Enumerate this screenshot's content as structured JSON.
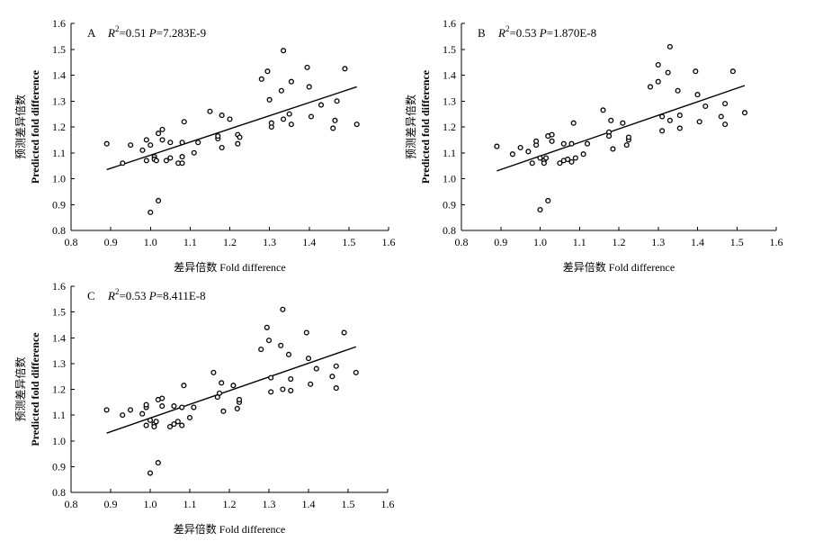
{
  "chart_data": [
    {
      "type": "scatter",
      "panel": "A",
      "stats": {
        "r2_label": "R",
        "r2_sup": "2",
        "r2_value": "=0.51",
        "p_label": "P",
        "p_value": "=7.283E-9"
      },
      "xlabel": "差异倍数 Fold difference",
      "ylabel_cn": "预测差异倍数",
      "ylabel_en": "Predicted fold difference",
      "xlim": [
        0.8,
        1.6
      ],
      "ylim": [
        0.8,
        1.6
      ],
      "xticks": [
        "0.8",
        "0.9",
        "1.0",
        "1.1",
        "1.2",
        "1.3",
        "1.4",
        "1.5",
        "1.6"
      ],
      "yticks": [
        "0.8",
        "0.9",
        "1.0",
        "1.1",
        "1.2",
        "1.3",
        "1.4",
        "1.5",
        "1.6"
      ],
      "fit_line": {
        "x": [
          0.89,
          1.52
        ],
        "y": [
          1.035,
          1.355
        ]
      },
      "points": [
        [
          0.89,
          1.135
        ],
        [
          0.93,
          1.06
        ],
        [
          0.95,
          1.13
        ],
        [
          0.98,
          1.11
        ],
        [
          0.99,
          1.07
        ],
        [
          0.99,
          1.15
        ],
        [
          1.0,
          1.13
        ],
        [
          1.0,
          0.87
        ],
        [
          1.01,
          1.085
        ],
        [
          1.01,
          1.075
        ],
        [
          1.015,
          1.07
        ],
        [
          1.02,
          0.915
        ],
        [
          1.02,
          1.175
        ],
        [
          1.03,
          1.19
        ],
        [
          1.03,
          1.15
        ],
        [
          1.04,
          1.07
        ],
        [
          1.05,
          1.08
        ],
        [
          1.05,
          1.14
        ],
        [
          1.07,
          1.06
        ],
        [
          1.08,
          1.06
        ],
        [
          1.08,
          1.085
        ],
        [
          1.08,
          1.14
        ],
        [
          1.085,
          1.22
        ],
        [
          1.11,
          1.1
        ],
        [
          1.12,
          1.14
        ],
        [
          1.15,
          1.26
        ],
        [
          1.17,
          1.155
        ],
        [
          1.17,
          1.165
        ],
        [
          1.18,
          1.245
        ],
        [
          1.18,
          1.12
        ],
        [
          1.2,
          1.23
        ],
        [
          1.22,
          1.135
        ],
        [
          1.22,
          1.17
        ],
        [
          1.225,
          1.16
        ],
        [
          1.28,
          1.385
        ],
        [
          1.295,
          1.415
        ],
        [
          1.3,
          1.305
        ],
        [
          1.305,
          1.2
        ],
        [
          1.305,
          1.215
        ],
        [
          1.33,
          1.34
        ],
        [
          1.335,
          1.495
        ],
        [
          1.335,
          1.23
        ],
        [
          1.35,
          1.25
        ],
        [
          1.355,
          1.375
        ],
        [
          1.355,
          1.21
        ],
        [
          1.395,
          1.43
        ],
        [
          1.4,
          1.355
        ],
        [
          1.405,
          1.24
        ],
        [
          1.43,
          1.285
        ],
        [
          1.46,
          1.195
        ],
        [
          1.465,
          1.225
        ],
        [
          1.47,
          1.3
        ],
        [
          1.49,
          1.425
        ],
        [
          1.52,
          1.21
        ]
      ]
    },
    {
      "type": "scatter",
      "panel": "B",
      "stats": {
        "r2_label": "R",
        "r2_sup": "2",
        "r2_value": "=0.53",
        "p_label": "P",
        "p_value": "=1.870E-8"
      },
      "xlabel": "差异倍数 Fold difference",
      "ylabel_cn": "预测差异倍数",
      "ylabel_en": "Predicted fold difference",
      "xlim": [
        0.8,
        1.6
      ],
      "ylim": [
        0.8,
        1.6
      ],
      "xticks": [
        "0.8",
        "0.9",
        "1.0",
        "1.1",
        "1.2",
        "1.3",
        "1.4",
        "1.5",
        "1.6"
      ],
      "yticks": [
        "0.8",
        "0.9",
        "1.0",
        "1.1",
        "1.2",
        "1.3",
        "1.4",
        "1.5",
        "1.6"
      ],
      "fit_line": {
        "x": [
          0.89,
          1.52
        ],
        "y": [
          1.03,
          1.36
        ]
      },
      "points": [
        [
          0.89,
          1.125
        ],
        [
          0.93,
          1.095
        ],
        [
          0.95,
          1.12
        ],
        [
          0.97,
          1.105
        ],
        [
          0.98,
          1.06
        ],
        [
          0.99,
          1.13
        ],
        [
          0.99,
          1.145
        ],
        [
          1.0,
          1.08
        ],
        [
          1.0,
          0.88
        ],
        [
          1.01,
          1.07
        ],
        [
          1.01,
          1.06
        ],
        [
          1.015,
          1.08
        ],
        [
          1.02,
          0.915
        ],
        [
          1.02,
          1.165
        ],
        [
          1.03,
          1.17
        ],
        [
          1.03,
          1.145
        ],
        [
          1.05,
          1.06
        ],
        [
          1.06,
          1.07
        ],
        [
          1.06,
          1.135
        ],
        [
          1.07,
          1.075
        ],
        [
          1.08,
          1.065
        ],
        [
          1.08,
          1.135
        ],
        [
          1.085,
          1.215
        ],
        [
          1.09,
          1.08
        ],
        [
          1.11,
          1.095
        ],
        [
          1.12,
          1.135
        ],
        [
          1.16,
          1.265
        ],
        [
          1.175,
          1.18
        ],
        [
          1.175,
          1.165
        ],
        [
          1.18,
          1.225
        ],
        [
          1.185,
          1.115
        ],
        [
          1.21,
          1.215
        ],
        [
          1.22,
          1.13
        ],
        [
          1.225,
          1.15
        ],
        [
          1.225,
          1.16
        ],
        [
          1.28,
          1.355
        ],
        [
          1.3,
          1.44
        ],
        [
          1.3,
          1.375
        ],
        [
          1.31,
          1.24
        ],
        [
          1.31,
          1.185
        ],
        [
          1.325,
          1.41
        ],
        [
          1.33,
          1.51
        ],
        [
          1.33,
          1.225
        ],
        [
          1.35,
          1.34
        ],
        [
          1.355,
          1.245
        ],
        [
          1.355,
          1.195
        ],
        [
          1.395,
          1.415
        ],
        [
          1.4,
          1.325
        ],
        [
          1.405,
          1.22
        ],
        [
          1.42,
          1.28
        ],
        [
          1.46,
          1.24
        ],
        [
          1.47,
          1.29
        ],
        [
          1.47,
          1.21
        ],
        [
          1.49,
          1.415
        ],
        [
          1.52,
          1.255
        ]
      ]
    },
    {
      "type": "scatter",
      "panel": "C",
      "stats": {
        "r2_label": "R",
        "r2_sup": "2",
        "r2_value": "=0.53",
        "p_label": "P",
        "p_value": "=8.411E-8"
      },
      "xlabel": "差异倍数 Fold difference",
      "ylabel_cn": "预测差异倍数",
      "ylabel_en": "Predicted fold difference",
      "xlim": [
        0.8,
        1.6
      ],
      "ylim": [
        0.8,
        1.6
      ],
      "xticks": [
        "0.8",
        "0.9",
        "1.0",
        "1.1",
        "1.2",
        "1.3",
        "1.4",
        "1.5",
        "1.6"
      ],
      "yticks": [
        "0.8",
        "0.9",
        "1.0",
        "1.1",
        "1.2",
        "1.3",
        "1.4",
        "1.5",
        "1.6"
      ],
      "fit_line": {
        "x": [
          0.89,
          1.52
        ],
        "y": [
          1.03,
          1.365
        ]
      },
      "points": [
        [
          0.89,
          1.12
        ],
        [
          0.93,
          1.1
        ],
        [
          0.95,
          1.12
        ],
        [
          0.98,
          1.105
        ],
        [
          0.99,
          1.06
        ],
        [
          0.99,
          1.13
        ],
        [
          0.99,
          1.14
        ],
        [
          1.0,
          1.08
        ],
        [
          1.0,
          0.875
        ],
        [
          1.01,
          1.065
        ],
        [
          1.01,
          1.055
        ],
        [
          1.015,
          1.075
        ],
        [
          1.02,
          0.915
        ],
        [
          1.02,
          1.16
        ],
        [
          1.03,
          1.165
        ],
        [
          1.03,
          1.135
        ],
        [
          1.05,
          1.055
        ],
        [
          1.06,
          1.065
        ],
        [
          1.06,
          1.135
        ],
        [
          1.07,
          1.075
        ],
        [
          1.08,
          1.06
        ],
        [
          1.08,
          1.13
        ],
        [
          1.085,
          1.215
        ],
        [
          1.1,
          1.09
        ],
        [
          1.11,
          1.13
        ],
        [
          1.16,
          1.265
        ],
        [
          1.17,
          1.17
        ],
        [
          1.175,
          1.185
        ],
        [
          1.18,
          1.225
        ],
        [
          1.185,
          1.115
        ],
        [
          1.21,
          1.215
        ],
        [
          1.22,
          1.125
        ],
        [
          1.225,
          1.15
        ],
        [
          1.225,
          1.16
        ],
        [
          1.28,
          1.355
        ],
        [
          1.295,
          1.44
        ],
        [
          1.3,
          1.39
        ],
        [
          1.305,
          1.245
        ],
        [
          1.305,
          1.19
        ],
        [
          1.33,
          1.37
        ],
        [
          1.335,
          1.51
        ],
        [
          1.335,
          1.2
        ],
        [
          1.35,
          1.335
        ],
        [
          1.355,
          1.24
        ],
        [
          1.355,
          1.195
        ],
        [
          1.395,
          1.42
        ],
        [
          1.4,
          1.32
        ],
        [
          1.405,
          1.22
        ],
        [
          1.42,
          1.28
        ],
        [
          1.46,
          1.25
        ],
        [
          1.47,
          1.29
        ],
        [
          1.47,
          1.205
        ],
        [
          1.49,
          1.42
        ],
        [
          1.52,
          1.265
        ]
      ]
    }
  ]
}
